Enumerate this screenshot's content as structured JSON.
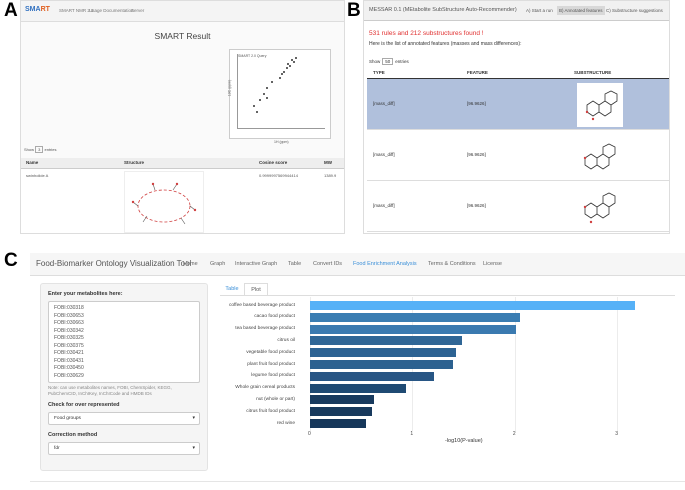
{
  "letters": {
    "a": "A",
    "b": "B",
    "c": "C"
  },
  "panel_a": {
    "logo_main": "SMA",
    "logo_sub": "RT",
    "nav_links": [
      "SMART NMR 2.1",
      "Usage Documentation",
      "Server"
    ],
    "title": "SMART Result",
    "plot_legend": "SMART 2.0 Query",
    "plot_xlabel": "1H (ppm)",
    "plot_ylabel": "13C (ppm)",
    "show_label": "Show",
    "show_value": "3",
    "entries_label": "entries",
    "columns": [
      "Name",
      "Structure",
      "Cosine score",
      "MW"
    ],
    "row": {
      "name": "swinholide A",
      "score": "0.9999997569944414",
      "mw": "1389.9"
    }
  },
  "panel_b": {
    "brand": "MESSAR 0.1 (MEtabolite SubStructure Auto-Recommender)",
    "tabs": [
      "A) Start a run",
      "B) Annotated features",
      "C) Substructure suggestions"
    ],
    "found_text": "531 rules and 212 substructures found !",
    "sub_text": "Here is the list of annotated features (masses and mass differences):",
    "show_label": "Show",
    "show_value": "50",
    "entries_label": "entries",
    "columns": [
      "TYPE",
      "FEATURE",
      "SUBSTRUCTURE"
    ],
    "rows": [
      {
        "type": "[mass_diff]",
        "feature": "[96.9626]"
      },
      {
        "type": "[mass_diff]",
        "feature": "[96.9626]"
      },
      {
        "type": "[mass_diff]",
        "feature": "[96.9626]"
      }
    ]
  },
  "panel_c": {
    "brand": "Food-Biomarker Ontology Visualization Tool",
    "nav": [
      "Home",
      "Graph",
      "Interactive Graph",
      "Table",
      "Convert IDs",
      "Food Enrichment Analysis",
      "Terms & Conditions",
      "License"
    ],
    "input_label": "Enter your metabolites here:",
    "metabolites": [
      "FOBI:030318",
      "FOBI:030653",
      "FOBI:030663",
      "FOBI:030342",
      "FOBI:030325",
      "FOBI:030375",
      "FOBI:030421",
      "FOBI:030431",
      "FOBI:030450",
      "FOBI:030629"
    ],
    "note": "Note: can use metabolites names, FOBI, ChemSpider, KEGG, PubChemCID, InChIKey, InChICode and HMDB IDs",
    "check_label": "Check for over represented",
    "check_value": "Food groups",
    "correction_label": "Correction method",
    "correction_value": "fdr",
    "tabs": [
      "Table",
      "Plot"
    ],
    "accent_color": "#3a8fd8"
  },
  "chart_data": {
    "type": "bar",
    "orientation": "horizontal",
    "categories": [
      "coffee based beverage product",
      "cacao food product",
      "tea based beverage product",
      "citrus oil",
      "vegetable food product",
      "plant fruit food product",
      "legume food product",
      "Whole grain cereal products",
      "nut (whole or part)",
      "citrus fruit food product",
      "red wine"
    ],
    "values": [
      3.17,
      2.05,
      2.01,
      1.48,
      1.43,
      1.4,
      1.21,
      0.94,
      0.62,
      0.61,
      0.55
    ],
    "colors": [
      "#56b1f7",
      "#3a7db2",
      "#3a7ab0",
      "#2f6696",
      "#2d6393",
      "#2c6190",
      "#285685",
      "#1f4a73",
      "#183a5e",
      "#183a5d",
      "#16375a"
    ],
    "xlabel": "-log10(P-value)",
    "ylabel": "",
    "xlim": [
      0,
      3.3
    ],
    "xticks": [
      "0",
      "1",
      "2",
      "3"
    ]
  }
}
